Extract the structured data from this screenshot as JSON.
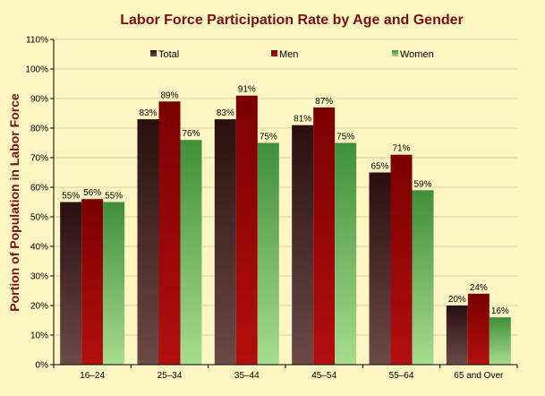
{
  "chart_data": {
    "type": "bar",
    "title": "Labor Force Participation Rate by Age and Gender",
    "xlabel": "",
    "ylabel": "Portion of Population in Labor Force",
    "ylim": [
      0,
      110
    ],
    "yticks": [
      "0%",
      "10%",
      "20%",
      "30%",
      "40%",
      "50%",
      "60%",
      "70%",
      "80%",
      "90%",
      "100%",
      "110%"
    ],
    "grid": true,
    "legend_position": "top",
    "categories": [
      "16–24",
      "25–34",
      "35–44",
      "45–54",
      "55–64",
      "65 and Over"
    ],
    "series": [
      {
        "name": "Total",
        "values": [
          55,
          83,
          83,
          81,
          65,
          20
        ],
        "labels": [
          "55%",
          "83%",
          "83%",
          "81%",
          "65%",
          "20%"
        ],
        "color_top": "#2a0f10",
        "color_bottom": "#6b4a48"
      },
      {
        "name": "Men",
        "values": [
          56,
          89,
          91,
          87,
          71,
          24
        ],
        "labels": [
          "56%",
          "89%",
          "91%",
          "87%",
          "71%",
          "24%"
        ],
        "color_top": "#7a0000",
        "color_bottom": "#b30f0f"
      },
      {
        "name": "Women",
        "values": [
          55,
          76,
          75,
          75,
          59,
          16
        ],
        "labels": [
          "55%",
          "76%",
          "75%",
          "75%",
          "59%",
          "16%"
        ],
        "color_top": "#3f8f3a",
        "color_bottom": "#a8dc8e"
      }
    ]
  },
  "colors": {
    "background": "#fdf6c3",
    "plot_background": "#fdf6c3",
    "title": "#7a0f12",
    "gridline": "#d6d0a0",
    "axis": "#000000"
  }
}
